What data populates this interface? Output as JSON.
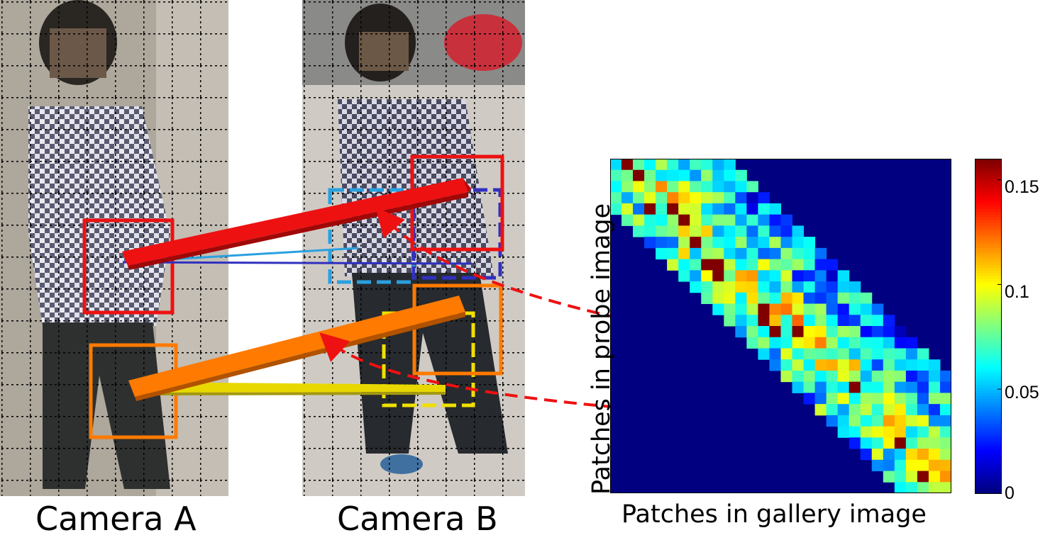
{
  "figure": {
    "camera_a_label": "Camera A",
    "camera_b_label": "Camera B",
    "xlabel": "Patches in gallery image",
    "ylabel": "Patches in probe image"
  },
  "colors": {
    "match_red": "#ee1111",
    "match_orange": "#ff7a00",
    "match_yellow": "#f0e000",
    "match_light_blue": "#2aa0e0",
    "match_dark_blue": "#3030c0",
    "heatmap_background": "#00008f"
  },
  "chart_data": {
    "type": "heatmap",
    "xlabel": "Patches in gallery image",
    "ylabel": "Patches in probe image",
    "colormap": "jet",
    "clim": [
      0,
      0.16
    ],
    "colorbar_ticks": [
      "0",
      "0.05",
      "0.1",
      "0.15"
    ],
    "colorbar_tick_values": [
      0,
      0.05,
      0.1,
      0.15
    ],
    "grid_size": [
      30,
      30
    ],
    "band_half_width": 10,
    "band_center_slope": 1.0,
    "band_center_values": 0.1,
    "band_edge_values": 0.04,
    "peak_value": 0.16,
    "background_value": 0
  }
}
